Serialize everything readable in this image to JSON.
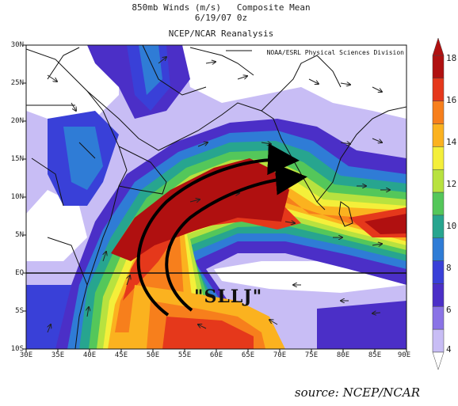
{
  "header": {
    "line1": "850mb Winds (m/s)   Composite Mean",
    "line2": "6/19/07 0z",
    "line3": "NCEP/NCAR Reanalysis"
  },
  "credit": "NOAA/ESRL Physical Sciences Division",
  "jet_label": "\"SLLJ\"",
  "source_note": "source: NCEP/NCAR",
  "latitude_labels": [
    "30N",
    "25N",
    "20N",
    "15N",
    "10N",
    "5N",
    "EQ",
    "5S",
    "10S"
  ],
  "longitude_labels": [
    "30E",
    "35E",
    "40E",
    "45E",
    "50E",
    "55E",
    "60E",
    "65E",
    "70E",
    "75E",
    "80E",
    "85E",
    "90E"
  ],
  "colorbar": {
    "labels": [
      "18",
      "16",
      "14",
      "12",
      "10",
      "8",
      "6",
      "4"
    ],
    "colors": [
      "#b01010",
      "#e5381b",
      "#f77f1c",
      "#fbb21f",
      "#f4ef3a",
      "#b8e23f",
      "#54c75a",
      "#27a58f",
      "#2f7cd6",
      "#3940d8",
      "#4b2fc7",
      "#8a73e6",
      "#c8bdf5"
    ]
  }
}
